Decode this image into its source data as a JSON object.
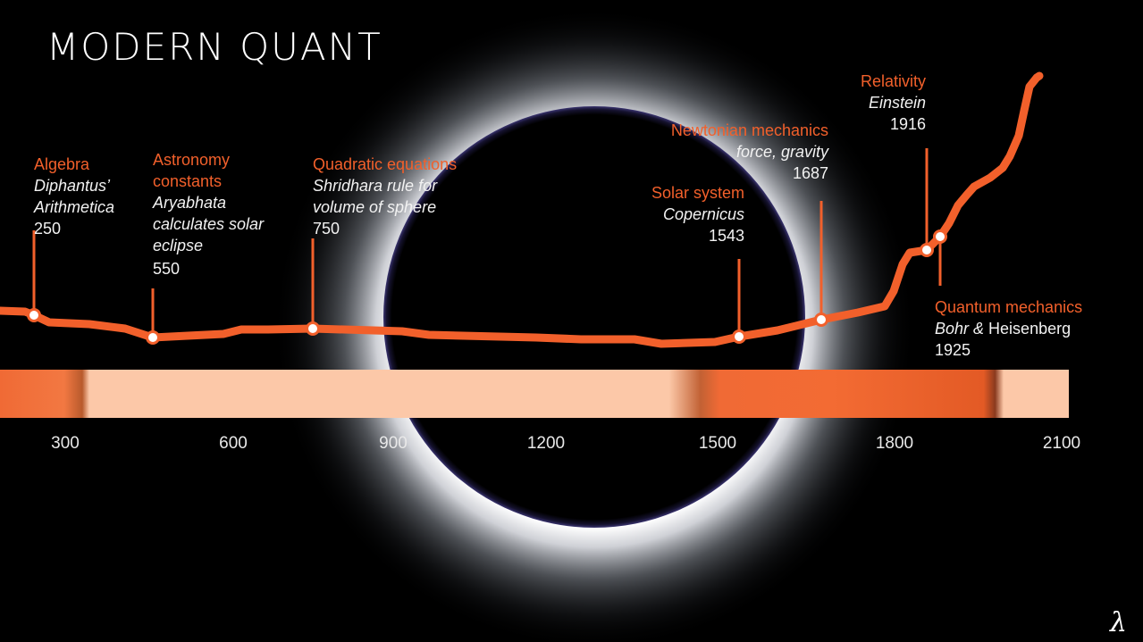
{
  "slide": {
    "title": "MODERN QUANT",
    "logo_glyph": "λ",
    "colors": {
      "accent": "#f2602b",
      "band_light": "#fcc8a8",
      "text": "#f2f2f2",
      "background": "#000000"
    }
  },
  "events": [
    {
      "heading": "Algebra",
      "lines": [
        "Diphantus’",
        "Arithmetica"
      ],
      "year": "250"
    },
    {
      "heading": [
        "Astronomy",
        "constants"
      ],
      "lines": [
        "Aryabhata",
        "calculates solar",
        "eclipse"
      ],
      "year": "550"
    },
    {
      "heading": "Quadratic equations",
      "lines": [
        "Shridhara rule for",
        "volume of sphere"
      ],
      "year": "750"
    },
    {
      "heading": "Solar system",
      "lines": [
        "Copernicus"
      ],
      "year": "1543"
    },
    {
      "heading": "Newtonian mechanics",
      "lines": [
        "force, gravity"
      ],
      "year": "1687"
    },
    {
      "heading": "Relativity",
      "lines": [
        "Einstein"
      ],
      "year": "1916"
    },
    {
      "heading": "Quantum mechanics",
      "lines_part1": "Bohr &",
      "lines_part2": "Heisenberg",
      "year": "1925"
    }
  ],
  "axis_ticks": [
    "300",
    "600",
    "900",
    "1200",
    "1500",
    "1800",
    "2100"
  ]
}
